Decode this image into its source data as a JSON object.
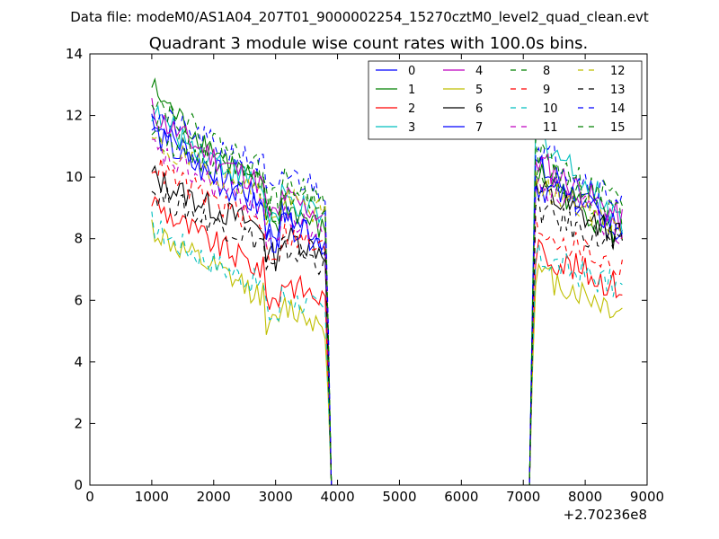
{
  "figure": {
    "suptitle": "Data file: modeM0/AS1A04_207T01_9000002254_15270cztM0_level2_quad_clean.evt"
  },
  "chart_data": {
    "type": "line",
    "title": "Quadrant 3 module wise count rates with 100.0s bins.",
    "xlabel": "",
    "ylabel": "",
    "x_offset_label": "+2.70236e8",
    "xlim": [
      0,
      9000
    ],
    "ylim": [
      0,
      14
    ],
    "xticks": [
      0,
      1000,
      2000,
      3000,
      4000,
      5000,
      6000,
      7000,
      8000,
      9000
    ],
    "yticks": [
      0,
      2,
      4,
      6,
      8,
      10,
      12,
      14
    ],
    "legend_position": "top-right",
    "legend_columns": 4,
    "gap_segment": {
      "x": [
        3800,
        3900,
        4000,
        5000,
        6000,
        7000,
        7100,
        7200
      ],
      "note": "counts drop to zero between ~3900 and ~7100"
    },
    "series": [
      {
        "name": "0",
        "color": "#0000ff",
        "dash": "solid",
        "level1": 12.0,
        "end1": 8.0,
        "level2": 10.4,
        "end2": 8.1
      },
      {
        "name": "1",
        "color": "#008000",
        "dash": "solid",
        "level1": 13.0,
        "end1": 8.2,
        "level2": 10.2,
        "end2": 8.0
      },
      {
        "name": "2",
        "color": "#ff0000",
        "dash": "solid",
        "level1": 9.3,
        "end1": 6.0,
        "level2": 7.6,
        "end2": 6.4
      },
      {
        "name": "3",
        "color": "#00bfbf",
        "dash": "solid",
        "level1": 12.2,
        "end1": 8.6,
        "level2": 11.5,
        "end2": 8.6
      },
      {
        "name": "4",
        "color": "#bf00bf",
        "dash": "solid",
        "level1": 12.2,
        "end1": 8.7,
        "level2": 10.6,
        "end2": 8.6
      },
      {
        "name": "5",
        "color": "#bfbf00",
        "dash": "solid",
        "level1": 8.4,
        "end1": 5.2,
        "level2": 6.9,
        "end2": 5.6
      },
      {
        "name": "6",
        "color": "#000000",
        "dash": "solid",
        "level1": 10.1,
        "end1": 7.6,
        "level2": 9.6,
        "end2": 8.0
      },
      {
        "name": "7",
        "color": "#0000ff",
        "dash": "solid",
        "level1": 11.6,
        "end1": 7.8,
        "level2": 9.8,
        "end2": 8.4
      },
      {
        "name": "8",
        "color": "#008000",
        "dash": "dashed",
        "level1": 11.6,
        "end1": 9.0,
        "level2": 10.2,
        "end2": 8.8
      },
      {
        "name": "9",
        "color": "#ff0000",
        "dash": "dashed",
        "level1": 10.5,
        "end1": 7.6,
        "level2": 8.4,
        "end2": 7.0
      },
      {
        "name": "10",
        "color": "#00bfbf",
        "dash": "dashed",
        "level1": 8.5,
        "end1": 5.6,
        "level2": 7.4,
        "end2": 6.4
      },
      {
        "name": "11",
        "color": "#bf00bf",
        "dash": "dashed",
        "level1": 11.0,
        "end1": 8.1,
        "level2": 9.9,
        "end2": 8.2
      },
      {
        "name": "12",
        "color": "#bfbf00",
        "dash": "dashed",
        "level1": 11.2,
        "end1": 8.8,
        "level2": 9.8,
        "end2": 8.3
      },
      {
        "name": "13",
        "color": "#000000",
        "dash": "dashed",
        "level1": 9.6,
        "end1": 7.2,
        "level2": 9.0,
        "end2": 7.6
      },
      {
        "name": "14",
        "color": "#0000ff",
        "dash": "dashed",
        "level1": 12.2,
        "end1": 9.6,
        "level2": 11.0,
        "end2": 9.2
      },
      {
        "name": "15",
        "color": "#008000",
        "dash": "dashed",
        "level1": 12.7,
        "end1": 9.2,
        "level2": 10.8,
        "end2": 9.0
      }
    ]
  }
}
